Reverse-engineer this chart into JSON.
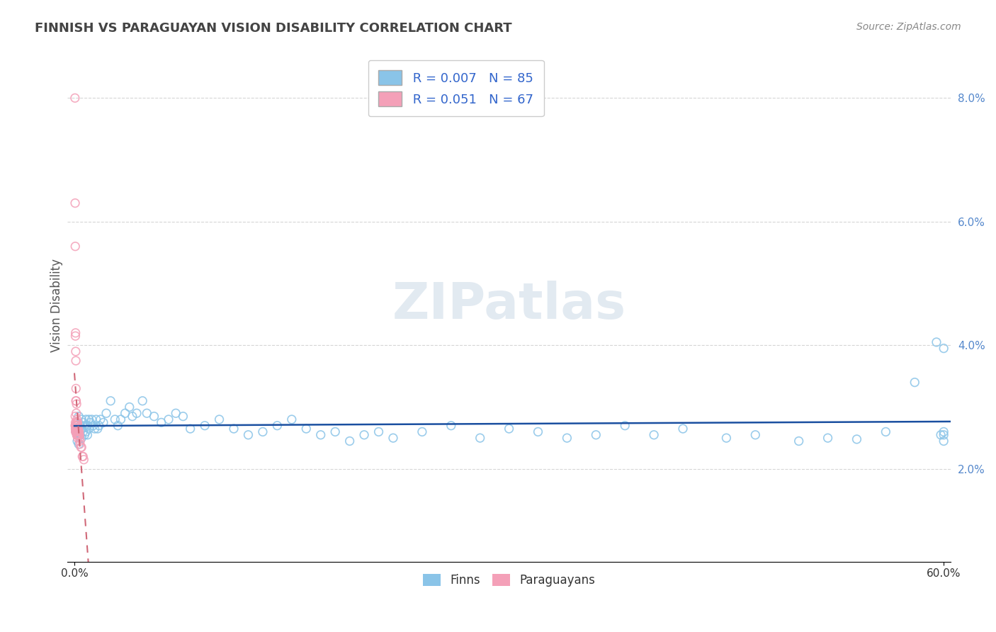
{
  "title": "FINNISH VS PARAGUAYAN VISION DISABILITY CORRELATION CHART",
  "source": "Source: ZipAtlas.com",
  "ylabel": "Vision Disability",
  "xlim": [
    -0.005,
    0.605
  ],
  "ylim": [
    0.005,
    0.088
  ],
  "xtick_vals": [
    0.0,
    0.6
  ],
  "xtick_labels": [
    "0.0%",
    "60.0%"
  ],
  "ytick_vals": [
    0.02,
    0.04,
    0.06,
    0.08
  ],
  "ytick_labels": [
    "2.0%",
    "4.0%",
    "6.0%",
    "8.0%"
  ],
  "legend_r1": "R = 0.007",
  "legend_n1": "N = 85",
  "legend_r2": "R = 0.051",
  "legend_n2": "N = 67",
  "color_blue": "#8ac4e8",
  "color_pink": "#f4a0b8",
  "color_blue_line": "#1a4fa0",
  "color_pink_line": "#d06878",
  "legend_label1": "Finns",
  "legend_label2": "Paraguayans",
  "watermark": "ZIPatlas",
  "finns_x": [
    0.001,
    0.002,
    0.002,
    0.002,
    0.003,
    0.003,
    0.003,
    0.004,
    0.004,
    0.005,
    0.005,
    0.005,
    0.006,
    0.006,
    0.007,
    0.007,
    0.008,
    0.008,
    0.009,
    0.009,
    0.01,
    0.01,
    0.011,
    0.012,
    0.013,
    0.014,
    0.015,
    0.016,
    0.017,
    0.018,
    0.02,
    0.022,
    0.025,
    0.028,
    0.03,
    0.032,
    0.035,
    0.038,
    0.04,
    0.043,
    0.047,
    0.05,
    0.055,
    0.06,
    0.065,
    0.07,
    0.075,
    0.08,
    0.09,
    0.1,
    0.11,
    0.12,
    0.13,
    0.14,
    0.15,
    0.16,
    0.17,
    0.18,
    0.19,
    0.2,
    0.21,
    0.22,
    0.24,
    0.26,
    0.28,
    0.3,
    0.32,
    0.34,
    0.36,
    0.38,
    0.4,
    0.42,
    0.45,
    0.47,
    0.5,
    0.52,
    0.54,
    0.56,
    0.58,
    0.595,
    0.598,
    0.6,
    0.6,
    0.6,
    0.6
  ],
  "finns_y": [
    0.026,
    0.0245,
    0.0255,
    0.027,
    0.024,
    0.026,
    0.0285,
    0.0255,
    0.027,
    0.025,
    0.0265,
    0.028,
    0.026,
    0.0275,
    0.0255,
    0.027,
    0.026,
    0.028,
    0.0255,
    0.027,
    0.028,
    0.0265,
    0.0275,
    0.028,
    0.027,
    0.0265,
    0.028,
    0.0265,
    0.027,
    0.028,
    0.0275,
    0.029,
    0.031,
    0.028,
    0.027,
    0.028,
    0.029,
    0.03,
    0.0285,
    0.029,
    0.031,
    0.029,
    0.0285,
    0.0275,
    0.028,
    0.029,
    0.0285,
    0.0265,
    0.027,
    0.028,
    0.0265,
    0.0255,
    0.026,
    0.027,
    0.028,
    0.0265,
    0.0255,
    0.026,
    0.0245,
    0.0255,
    0.026,
    0.025,
    0.026,
    0.027,
    0.025,
    0.0265,
    0.026,
    0.025,
    0.0255,
    0.027,
    0.0255,
    0.0265,
    0.025,
    0.0255,
    0.0245,
    0.025,
    0.0248,
    0.026,
    0.034,
    0.0405,
    0.0255,
    0.0255,
    0.0245,
    0.026,
    0.0395
  ],
  "paraguayans_x": [
    0.0004,
    0.0005,
    0.0005,
    0.0006,
    0.0006,
    0.0007,
    0.0007,
    0.0007,
    0.0008,
    0.0008,
    0.0008,
    0.0009,
    0.0009,
    0.001,
    0.001,
    0.001,
    0.0011,
    0.0011,
    0.0012,
    0.0012,
    0.0012,
    0.0013,
    0.0013,
    0.0014,
    0.0014,
    0.0015,
    0.0015,
    0.0015,
    0.0016,
    0.0016,
    0.0017,
    0.0017,
    0.0018,
    0.0018,
    0.0019,
    0.0019,
    0.002,
    0.002,
    0.002,
    0.0021,
    0.0021,
    0.0022,
    0.0022,
    0.0022,
    0.0023,
    0.0023,
    0.0024,
    0.0025,
    0.0025,
    0.0026,
    0.0026,
    0.0027,
    0.0028,
    0.0029,
    0.003,
    0.0031,
    0.0032,
    0.0033,
    0.0034,
    0.0035,
    0.0038,
    0.004,
    0.0045,
    0.005,
    0.0055,
    0.006,
    0.0065
  ],
  "paraguayans_y": [
    0.08,
    0.063,
    0.027,
    0.056,
    0.0285,
    0.0415,
    0.0275,
    0.0265,
    0.042,
    0.027,
    0.026,
    0.039,
    0.0265,
    0.0375,
    0.031,
    0.026,
    0.033,
    0.0265,
    0.031,
    0.027,
    0.026,
    0.029,
    0.0265,
    0.0275,
    0.026,
    0.0305,
    0.027,
    0.026,
    0.0275,
    0.0255,
    0.0265,
    0.0255,
    0.028,
    0.0255,
    0.0275,
    0.0255,
    0.0275,
    0.0265,
    0.0255,
    0.0275,
    0.0255,
    0.027,
    0.026,
    0.025,
    0.0265,
    0.0255,
    0.026,
    0.0265,
    0.0255,
    0.026,
    0.0255,
    0.026,
    0.026,
    0.0255,
    0.026,
    0.0255,
    0.026,
    0.0255,
    0.0255,
    0.025,
    0.024,
    0.0245,
    0.0235,
    0.0235,
    0.022,
    0.022,
    0.0215
  ]
}
